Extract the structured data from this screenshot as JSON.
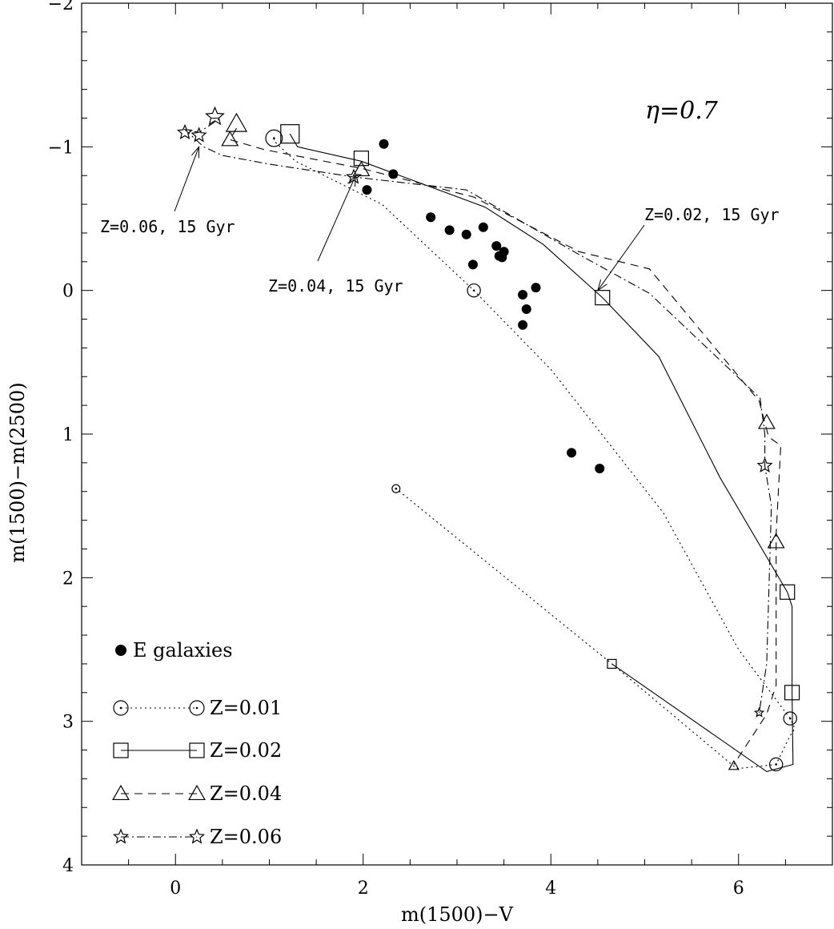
{
  "chart_data": {
    "type": "scatter",
    "xlabel": "m(1500)−V",
    "ylabel": "m(1500)−m(2500)",
    "xlim": [
      -1,
      7
    ],
    "ylim": [
      4,
      -2
    ],
    "y_inverted": true,
    "xticks": [
      0,
      2,
      4,
      6
    ],
    "yticks": [
      -2,
      -1,
      0,
      1,
      2,
      3,
      4
    ],
    "tick_labels": {
      "x": [
        "0",
        "2",
        "4",
        "6"
      ],
      "y": [
        "−2",
        "−1",
        "0",
        "1",
        "2",
        "3",
        "4"
      ]
    },
    "grid": false,
    "legend_position": "bottom-left",
    "parameter_label": "η=0.7",
    "series": [
      {
        "name": "E galaxies",
        "type": "scatter",
        "marker": "filled-circle",
        "points": [
          [
            2.22,
            -1.02
          ],
          [
            2.32,
            -0.81
          ],
          [
            2.04,
            -0.7
          ],
          [
            2.72,
            -0.51
          ],
          [
            2.92,
            -0.42
          ],
          [
            3.1,
            -0.39
          ],
          [
            3.28,
            -0.44
          ],
          [
            3.42,
            -0.31
          ],
          [
            3.45,
            -0.24
          ],
          [
            3.5,
            -0.27
          ],
          [
            3.48,
            -0.23
          ],
          [
            3.17,
            -0.18
          ],
          [
            3.7,
            0.03
          ],
          [
            3.84,
            -0.02
          ],
          [
            3.74,
            0.13
          ],
          [
            3.7,
            0.24
          ],
          [
            4.22,
            1.13
          ],
          [
            4.52,
            1.24
          ]
        ]
      },
      {
        "name": "Z=0.01",
        "line_style": "dotted",
        "marker": "open-circle",
        "points": [
          [
            1.05,
            -1.06
          ],
          [
            1.05,
            -1.04
          ],
          [
            1.28,
            -0.9
          ],
          [
            2.2,
            -0.6
          ],
          [
            3.18,
            0.0
          ],
          [
            4.0,
            0.55
          ],
          [
            5.2,
            1.55
          ],
          [
            6.0,
            2.5
          ],
          [
            6.55,
            2.98
          ],
          [
            6.6,
            3.05
          ],
          [
            6.55,
            3.1
          ],
          [
            6.4,
            3.3
          ],
          [
            5.98,
            3.33
          ],
          [
            4.65,
            2.6
          ],
          [
            2.35,
            1.38
          ]
        ],
        "markers": [
          [
            1.05,
            -1.06
          ],
          [
            3.18,
            0.0
          ],
          [
            6.55,
            2.98
          ],
          [
            6.4,
            3.3
          ],
          [
            2.35,
            1.38
          ]
        ]
      },
      {
        "name": "Z=0.02",
        "line_style": "solid",
        "marker": "open-square",
        "points": [
          [
            1.22,
            -1.09
          ],
          [
            1.3,
            -1.0
          ],
          [
            1.98,
            -0.9
          ],
          [
            3.3,
            -0.58
          ],
          [
            3.92,
            -0.32
          ],
          [
            4.55,
            0.05
          ],
          [
            5.15,
            0.46
          ],
          [
            5.8,
            1.3
          ],
          [
            6.52,
            2.1
          ],
          [
            6.57,
            2.2
          ],
          [
            6.57,
            2.8
          ],
          [
            6.58,
            3.3
          ],
          [
            6.3,
            3.35
          ],
          [
            4.65,
            2.6
          ]
        ],
        "markers": [
          [
            1.22,
            -1.09
          ],
          [
            1.98,
            -0.92
          ],
          [
            4.55,
            0.05
          ],
          [
            6.52,
            2.1
          ],
          [
            6.57,
            2.8
          ],
          [
            4.65,
            2.6
          ]
        ]
      },
      {
        "name": "Z=0.04",
        "line_style": "dashed",
        "marker": "open-triangle",
        "points": [
          [
            0.65,
            -1.13
          ],
          [
            0.58,
            -1.05
          ],
          [
            0.95,
            -0.98
          ],
          [
            1.98,
            -0.85
          ],
          [
            3.18,
            -0.65
          ],
          [
            4.3,
            -0.27
          ],
          [
            5.05,
            -0.15
          ],
          [
            6.22,
            0.77
          ],
          [
            6.32,
            1.02
          ],
          [
            6.45,
            1.08
          ],
          [
            6.4,
            1.7
          ],
          [
            6.4,
            2.75
          ],
          [
            6.3,
            2.95
          ],
          [
            5.95,
            3.3
          ]
        ],
        "markers": [
          [
            0.65,
            -1.16
          ],
          [
            0.58,
            -1.05
          ],
          [
            1.98,
            -0.84
          ],
          [
            6.3,
            0.92
          ],
          [
            6.4,
            1.75
          ],
          [
            5.95,
            3.31
          ]
        ]
      },
      {
        "name": "Z=0.06",
        "line_style": "dash-dot",
        "marker": "open-star",
        "points": [
          [
            0.38,
            -1.2
          ],
          [
            0.48,
            -1.2
          ],
          [
            0.25,
            -1.1
          ],
          [
            0.1,
            -1.12
          ],
          [
            0.3,
            -1.0
          ],
          [
            0.5,
            -0.94
          ],
          [
            1.0,
            -0.88
          ],
          [
            1.9,
            -0.79
          ],
          [
            3.1,
            -0.7
          ],
          [
            4.3,
            -0.25
          ],
          [
            5.05,
            0.02
          ],
          [
            6.23,
            0.75
          ],
          [
            6.28,
            1.0
          ],
          [
            6.28,
            1.22
          ],
          [
            6.35,
            1.5
          ],
          [
            6.3,
            2.6
          ],
          [
            6.22,
            2.94
          ]
        ],
        "markers": [
          [
            0.42,
            -1.21
          ],
          [
            0.1,
            -1.1
          ],
          [
            0.25,
            -1.08
          ],
          [
            1.9,
            -0.79
          ],
          [
            6.28,
            1.22
          ],
          [
            6.22,
            2.94
          ]
        ]
      }
    ],
    "annotations": [
      {
        "text": "Z=0.06, 15 Gyr",
        "arrow_to": [
          0.25,
          -1.0
        ]
      },
      {
        "text": "Z=0.04, 15 Gyr",
        "arrow_to": [
          1.92,
          -0.8
        ]
      },
      {
        "text": "Z=0.02, 15 Gyr",
        "arrow_to": [
          4.5,
          0.0
        ]
      }
    ],
    "legend": [
      {
        "label": "E galaxies",
        "series": 0
      },
      {
        "label": "Z=0.01",
        "series": 1
      },
      {
        "label": "Z=0.02",
        "series": 2
      },
      {
        "label": "Z=0.04",
        "series": 3
      },
      {
        "label": "Z=0.06",
        "series": 4
      }
    ]
  }
}
